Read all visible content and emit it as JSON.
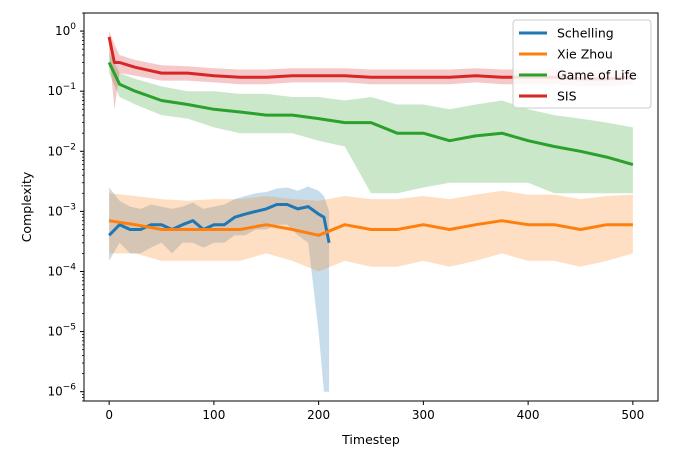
{
  "chart_data": {
    "type": "line",
    "title": "",
    "xlabel": "Timestep",
    "ylabel": "Complexity",
    "xlim": [
      -24,
      524
    ],
    "ylim": [
      7e-07,
      2
    ],
    "yscale": "log",
    "x_ticks": [
      0,
      100,
      200,
      300,
      400,
      500
    ],
    "y_ticks": [
      {
        "value": 1e-06,
        "base": "10",
        "exp": "−6"
      },
      {
        "value": 1e-05,
        "base": "10",
        "exp": "−5"
      },
      {
        "value": 0.0001,
        "base": "10",
        "exp": "−4"
      },
      {
        "value": 0.001,
        "base": "10",
        "exp": "−3"
      },
      {
        "value": 0.01,
        "base": "10",
        "exp": "−2"
      },
      {
        "value": 0.1,
        "base": "10",
        "exp": "−1"
      },
      {
        "value": 1,
        "base": "10",
        "exp": "0"
      }
    ],
    "legend_position": "top-right",
    "grid": false,
    "series": [
      {
        "name": "Schelling",
        "color": "#1f77b4",
        "x": [
          0,
          10,
          20,
          30,
          40,
          50,
          60,
          70,
          80,
          90,
          100,
          110,
          120,
          130,
          140,
          150,
          160,
          170,
          180,
          190,
          200,
          205,
          210
        ],
        "y": [
          0.0004,
          0.0006,
          0.0005,
          0.0005,
          0.0006,
          0.0006,
          0.0005,
          0.0006,
          0.0007,
          0.0005,
          0.0006,
          0.0006,
          0.0008,
          0.0009,
          0.001,
          0.0011,
          0.0013,
          0.0013,
          0.0011,
          0.0012,
          0.0009,
          0.0008,
          0.0003
        ],
        "lower": [
          0.00015,
          0.0003,
          0.0002,
          0.0002,
          0.00025,
          0.0003,
          0.0002,
          0.0003,
          0.0003,
          0.00025,
          0.0003,
          0.0003,
          0.0004,
          0.0004,
          0.0005,
          0.0005,
          0.0006,
          0.0006,
          0.0004,
          0.0003,
          1e-05,
          1e-06,
          1e-06
        ],
        "upper": [
          0.0025,
          0.0015,
          0.0012,
          0.0011,
          0.0013,
          0.0012,
          0.0011,
          0.0012,
          0.0014,
          0.0011,
          0.0012,
          0.0013,
          0.0016,
          0.0018,
          0.002,
          0.0021,
          0.0024,
          0.0025,
          0.0022,
          0.0026,
          0.0022,
          0.0018,
          0.001
        ]
      },
      {
        "name": "Xie Zhou",
        "color": "#ff7f0e",
        "x": [
          0,
          25,
          50,
          75,
          100,
          125,
          150,
          175,
          200,
          225,
          250,
          275,
          300,
          325,
          350,
          375,
          400,
          425,
          450,
          475,
          500
        ],
        "y": [
          0.0007,
          0.0006,
          0.0005,
          0.0005,
          0.0005,
          0.0005,
          0.0006,
          0.0005,
          0.0004,
          0.0006,
          0.0005,
          0.0005,
          0.0006,
          0.0005,
          0.0006,
          0.0007,
          0.0006,
          0.0006,
          0.0005,
          0.0006,
          0.0006
        ],
        "lower": [
          0.0002,
          0.0002,
          0.00015,
          0.00015,
          0.00015,
          0.00015,
          0.0002,
          0.00015,
          0.0001,
          0.00015,
          0.00012,
          0.00012,
          0.00015,
          0.00012,
          0.00015,
          0.0002,
          0.00015,
          0.00015,
          0.00012,
          0.00015,
          0.0002
        ],
        "upper": [
          0.002,
          0.0018,
          0.0016,
          0.0015,
          0.0016,
          0.0016,
          0.0018,
          0.0016,
          0.0015,
          0.0018,
          0.0016,
          0.0016,
          0.0018,
          0.0016,
          0.0019,
          0.0022,
          0.0019,
          0.0019,
          0.0016,
          0.0018,
          0.0019
        ]
      },
      {
        "name": "Game of Life",
        "color": "#2ca02c",
        "x": [
          0,
          10,
          25,
          50,
          75,
          100,
          125,
          150,
          175,
          200,
          225,
          250,
          275,
          300,
          325,
          350,
          375,
          400,
          425,
          450,
          475,
          500
        ],
        "y": [
          0.3,
          0.13,
          0.1,
          0.07,
          0.06,
          0.05,
          0.045,
          0.04,
          0.04,
          0.035,
          0.03,
          0.03,
          0.02,
          0.02,
          0.015,
          0.018,
          0.02,
          0.015,
          0.012,
          0.01,
          0.008,
          0.006
        ],
        "lower": [
          0.2,
          0.08,
          0.06,
          0.04,
          0.035,
          0.025,
          0.02,
          0.02,
          0.02,
          0.015,
          0.012,
          0.002,
          0.002,
          0.0025,
          0.003,
          0.003,
          0.003,
          0.003,
          0.002,
          0.002,
          0.002,
          0.002
        ],
        "upper": [
          0.45,
          0.2,
          0.16,
          0.12,
          0.1,
          0.1,
          0.09,
          0.09,
          0.08,
          0.08,
          0.07,
          0.08,
          0.06,
          0.06,
          0.05,
          0.06,
          0.07,
          0.05,
          0.04,
          0.035,
          0.03,
          0.025
        ]
      },
      {
        "name": "SIS",
        "color": "#d62728",
        "x": [
          0,
          5,
          10,
          25,
          50,
          75,
          100,
          125,
          150,
          175,
          200,
          225,
          250,
          275,
          300,
          325,
          350,
          375,
          400,
          425,
          450,
          475,
          500
        ],
        "y": [
          0.8,
          0.3,
          0.3,
          0.25,
          0.2,
          0.2,
          0.18,
          0.17,
          0.17,
          0.18,
          0.18,
          0.18,
          0.17,
          0.17,
          0.17,
          0.17,
          0.18,
          0.17,
          0.17,
          0.17,
          0.16,
          0.16,
          0.17
        ],
        "lower": [
          0.5,
          0.05,
          0.2,
          0.18,
          0.15,
          0.15,
          0.14,
          0.13,
          0.13,
          0.14,
          0.14,
          0.14,
          0.13,
          0.13,
          0.13,
          0.13,
          0.14,
          0.13,
          0.13,
          0.13,
          0.12,
          0.12,
          0.13
        ],
        "upper": [
          1.0,
          0.6,
          0.4,
          0.33,
          0.27,
          0.26,
          0.24,
          0.23,
          0.23,
          0.24,
          0.24,
          0.24,
          0.23,
          0.23,
          0.23,
          0.23,
          0.24,
          0.23,
          0.23,
          0.23,
          0.22,
          0.22,
          0.23
        ]
      }
    ]
  }
}
